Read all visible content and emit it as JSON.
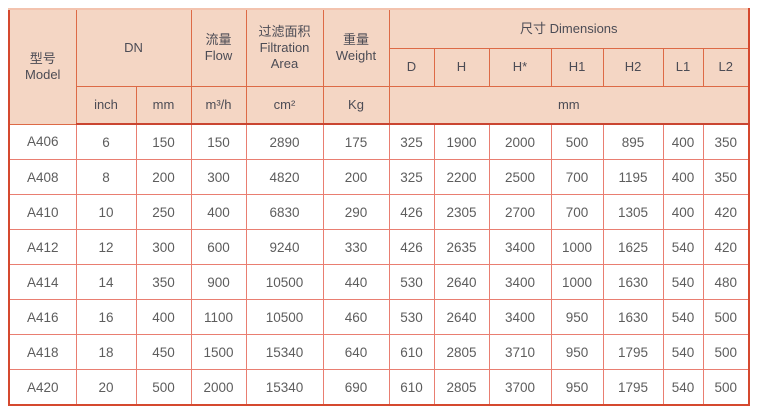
{
  "table": {
    "header": {
      "model": "型号\nModel",
      "dn": "DN",
      "flow": "流量\nFlow",
      "filtration": "过滤面积\nFiltration\nArea",
      "weight": "重量\nWeight",
      "dimensions": "尺寸 Dimensions",
      "dim_cols": [
        "D",
        "H",
        "H*",
        "H1",
        "H2",
        "L1",
        "L2"
      ],
      "units": {
        "inch": "inch",
        "mm": "mm",
        "flow": "m³/h",
        "area": "cm²",
        "weight": "Kg",
        "dims": "mm"
      }
    },
    "rows": [
      {
        "model": "A406",
        "values": [
          "6",
          "150",
          "150",
          "2890",
          "175",
          "325",
          "1900",
          "2000",
          "500",
          "895",
          "400",
          "350"
        ]
      },
      {
        "model": "A408",
        "values": [
          "8",
          "200",
          "300",
          "4820",
          "200",
          "325",
          "2200",
          "2500",
          "700",
          "1195",
          "400",
          "350"
        ]
      },
      {
        "model": "A410",
        "values": [
          "10",
          "250",
          "400",
          "6830",
          "290",
          "426",
          "2305",
          "2700",
          "700",
          "1305",
          "400",
          "420"
        ]
      },
      {
        "model": "A412",
        "values": [
          "12",
          "300",
          "600",
          "9240",
          "330",
          "426",
          "2635",
          "3400",
          "1000",
          "1625",
          "540",
          "420"
        ]
      },
      {
        "model": "A414",
        "values": [
          "14",
          "350",
          "900",
          "10500",
          "440",
          "530",
          "2640",
          "3400",
          "1000",
          "1630",
          "540",
          "480"
        ]
      },
      {
        "model": "A416",
        "values": [
          "16",
          "400",
          "1100",
          "10500",
          "460",
          "530",
          "2640",
          "3400",
          "950",
          "1630",
          "540",
          "500"
        ]
      },
      {
        "model": "A418",
        "values": [
          "18",
          "450",
          "1500",
          "15340",
          "640",
          "610",
          "2805",
          "3710",
          "950",
          "1795",
          "540",
          "500"
        ]
      },
      {
        "model": "A420",
        "values": [
          "20",
          "500",
          "2000",
          "15340",
          "690",
          "610",
          "2805",
          "3700",
          "950",
          "1795",
          "540",
          "500"
        ]
      }
    ],
    "colors": {
      "header_bg": "#f4d6c4",
      "header_border": "#dd6a46",
      "data_border": "#e97e71",
      "outer_border": "#d5492f",
      "header_text": "#4c4c55",
      "data_text": "#5d5d5d"
    }
  }
}
